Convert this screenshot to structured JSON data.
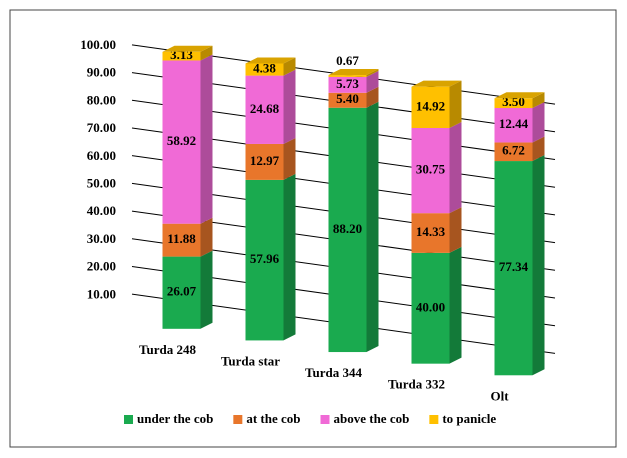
{
  "chart_data": {
    "type": "bar3d_stacked",
    "categories": [
      "Turda 248",
      "Turda star",
      "Turda 344",
      "Turda 332",
      "Olt"
    ],
    "series": [
      {
        "name": "under the cob",
        "color": "#1aaa4f",
        "values": [
          26.07,
          57.96,
          88.2,
          40,
          77.34
        ],
        "value_labels": [
          "26.07",
          "57.96",
          "88.20",
          "40.00",
          "77.34"
        ]
      },
      {
        "name": "at the cob",
        "color": "#e8762b",
        "values": [
          11.88,
          12.97,
          5.4,
          14.33,
          6.72
        ],
        "value_labels": [
          "11.88",
          "12.97",
          "5.40",
          "14.33",
          "6.72"
        ]
      },
      {
        "name": "above the cob",
        "color": "#f06ad6",
        "values": [
          58.92,
          24.68,
          5.73,
          30.75,
          12.44
        ],
        "value_labels": [
          "58.92",
          "24.68",
          "5.73",
          "30.75",
          "12.44"
        ]
      },
      {
        "name": "to panicle",
        "color": "#ffc000",
        "values": [
          3.13,
          4.38,
          0.67,
          14.92,
          3.5
        ],
        "value_labels": [
          "3.13",
          "4.38",
          "0.67",
          "14.92",
          "3.50"
        ]
      }
    ],
    "ylim": [
      0,
      100
    ],
    "yticks": [
      {
        "value": 10,
        "label": "10.00"
      },
      {
        "value": 20,
        "label": "20.00"
      },
      {
        "value": 30,
        "label": "30.00"
      },
      {
        "value": 40,
        "label": "40.00"
      },
      {
        "value": 50,
        "label": "50.00"
      },
      {
        "value": 60,
        "label": "60.00"
      },
      {
        "value": 70,
        "label": "70.00"
      },
      {
        "value": 80,
        "label": "80.00"
      },
      {
        "value": 90,
        "label": "90.00"
      },
      {
        "value": 100,
        "label": "100.00"
      }
    ],
    "grid": true,
    "legend": "bottom"
  }
}
